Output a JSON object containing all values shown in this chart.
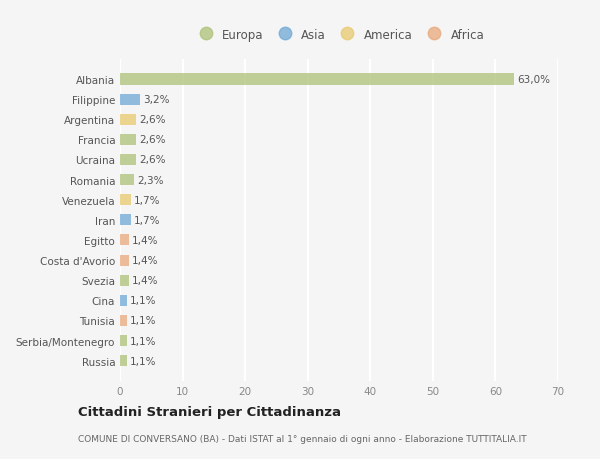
{
  "categories": [
    "Albania",
    "Filippine",
    "Argentina",
    "Francia",
    "Ucraina",
    "Romania",
    "Venezuela",
    "Iran",
    "Egitto",
    "Costa d'Avorio",
    "Svezia",
    "Cina",
    "Tunisia",
    "Serbia/Montenegro",
    "Russia"
  ],
  "values": [
    63.0,
    3.2,
    2.6,
    2.6,
    2.6,
    2.3,
    1.7,
    1.7,
    1.4,
    1.4,
    1.4,
    1.1,
    1.1,
    1.1,
    1.1
  ],
  "labels": [
    "63,0%",
    "3,2%",
    "2,6%",
    "2,6%",
    "2,6%",
    "2,3%",
    "1,7%",
    "1,7%",
    "1,4%",
    "1,4%",
    "1,4%",
    "1,1%",
    "1,1%",
    "1,1%",
    "1,1%"
  ],
  "continents": [
    "Europa",
    "Asia",
    "America",
    "Europa",
    "Europa",
    "Europa",
    "America",
    "Asia",
    "Africa",
    "Africa",
    "Europa",
    "Asia",
    "Africa",
    "Europa",
    "Europa"
  ],
  "continent_colors": {
    "Europa": "#adc178",
    "Asia": "#6ea8d5",
    "America": "#e8c96e",
    "Africa": "#e8a87c"
  },
  "xlim": [
    0,
    70
  ],
  "xticks": [
    0,
    10,
    20,
    30,
    40,
    50,
    60,
    70
  ],
  "title": "Cittadini Stranieri per Cittadinanza",
  "subtitle": "COMUNE DI CONVERSANO (BA) - Dati ISTAT al 1° gennaio di ogni anno - Elaborazione TUTTITALIA.IT",
  "background_color": "#f5f5f5",
  "grid_color": "#ffffff",
  "bar_alpha": 0.75,
  "bar_height": 0.55
}
